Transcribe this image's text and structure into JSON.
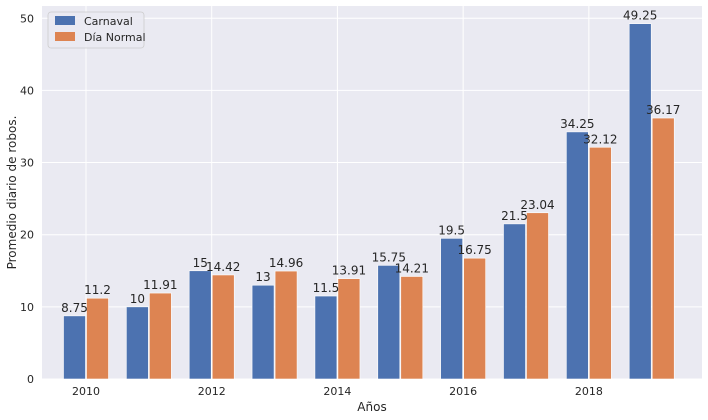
{
  "chart_data": {
    "type": "bar",
    "categories": [
      "2010",
      "2011",
      "2012",
      "2013",
      "2014",
      "2015",
      "2016",
      "2017",
      "2018",
      "2019"
    ],
    "series": [
      {
        "name": "Carnaval",
        "color": "#4c72b0",
        "values": [
          8.75,
          10,
          15,
          13,
          11.5,
          15.75,
          19.5,
          21.5,
          34.25,
          49.25
        ]
      },
      {
        "name": "Día Normal",
        "color": "#dd8452",
        "values": [
          11.2,
          11.91,
          14.42,
          14.96,
          13.91,
          14.21,
          16.75,
          23.04,
          32.12,
          36.17
        ]
      }
    ],
    "data_labels": [
      [
        "8.75",
        "10",
        "15",
        "13",
        "11.5",
        "15.75",
        "19.5",
        "21.5",
        "34.25",
        "49.25"
      ],
      [
        "11.2",
        "11.91",
        "14.42",
        "14.96",
        "13.91",
        "14.21",
        "16.75",
        "23.04",
        "32.12",
        "36.17"
      ]
    ],
    "xlabel": "Años",
    "ylabel": "Promedio diario de robos.",
    "x_ticks": [
      2010,
      2012,
      2014,
      2016,
      2018
    ],
    "x_range": [
      2009.3,
      2019.8
    ],
    "y_ticks": [
      0,
      10,
      20,
      30,
      40,
      50
    ],
    "ylim": [
      0,
      51.7
    ],
    "grid": true,
    "legend_position": "top-left",
    "background_color": "#eaeaf2",
    "grid_color": "#ffffff"
  }
}
